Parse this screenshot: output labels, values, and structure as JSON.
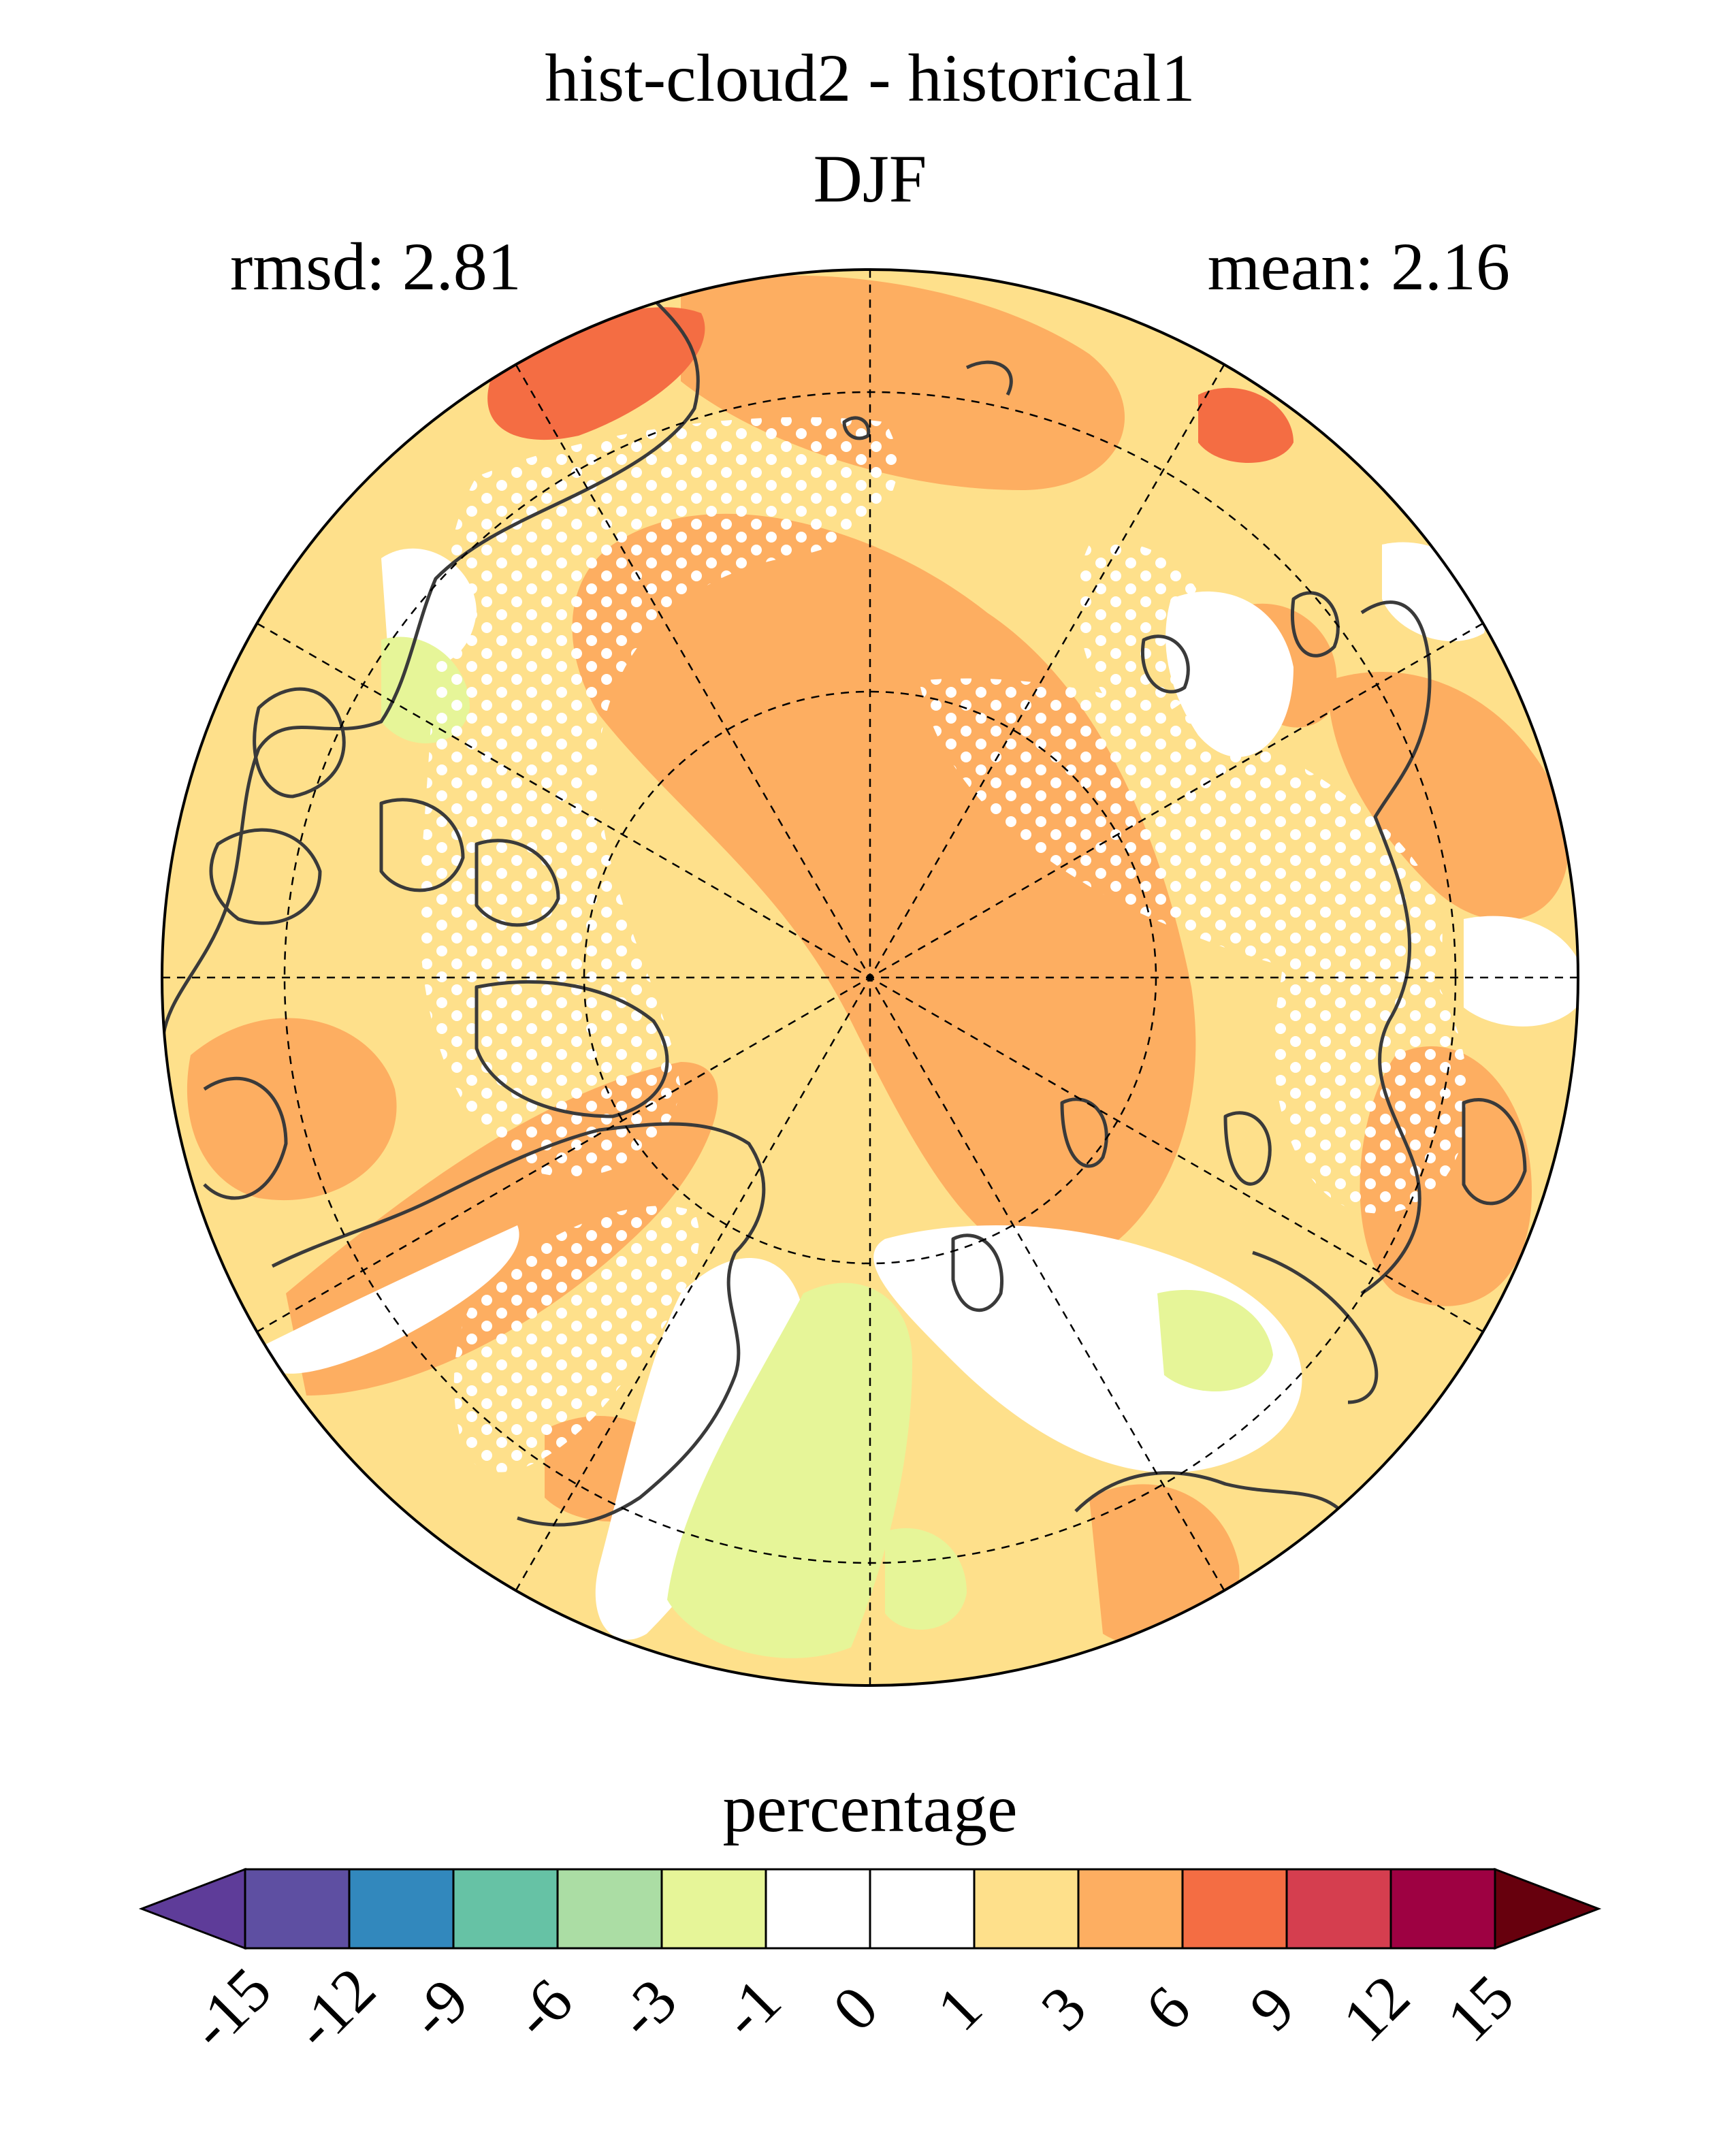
{
  "title_line1": "hist-cloud2 - historical1",
  "title_line2": "DJF",
  "rmsd_text": "rmsd: 2.81",
  "mean_text": "mean: 2.16",
  "colorbar": {
    "label": "percentage",
    "ticks": [
      "-15",
      "-12",
      "-9",
      "-6",
      "-3",
      "-1",
      "0",
      "1",
      "3",
      "6",
      "9",
      "12",
      "15"
    ],
    "colors": [
      "#5e3c99",
      "#5e4fa2",
      "#3288bd",
      "#66c2a5",
      "#abdda4",
      "#e6f598",
      "#ffffff",
      "#ffffff",
      "#fee08b",
      "#fdae61",
      "#f46d43",
      "#d53e4f",
      "#9e0142",
      "#67000d"
    ]
  },
  "map": {
    "projection": "north-polar-stereographic",
    "fill_color_main": "#fdae61",
    "fill_color_light": "#fee08b",
    "fill_color_strong": "#f46d43",
    "fill_color_negative": "#e6f598",
    "stippling": "white dots mark areas of significance"
  }
}
